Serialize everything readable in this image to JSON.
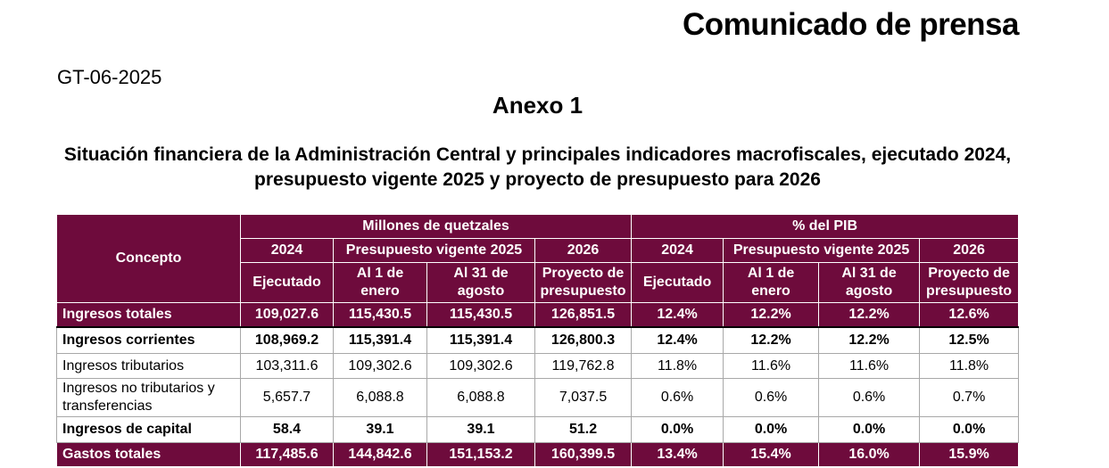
{
  "document": {
    "title": "Comunicado de prensa",
    "code": "GT-06-2025",
    "annex": "Anexo 1",
    "subtitle_line1": "Situación financiera de la Administración Central y principales indicadores macrofiscales, ejecutado 2024,",
    "subtitle_line2": "presupuesto vigente 2025 y proyecto de presupuesto para 2026"
  },
  "table": {
    "concept_header": "Concepto",
    "group_millions": "Millones de quetzales",
    "group_pib": "% del PIB",
    "years": {
      "y2024": "2024",
      "y2025": "Presupuesto vigente 2025",
      "y2026": "2026"
    },
    "subheaders": {
      "executed": "Ejecutado",
      "jan1": "Al 1 de enero",
      "aug31": "Al 31 de agosto",
      "project": "Proyecto de presupuesto"
    },
    "rows": [
      {
        "label": "Ingresos totales",
        "values": [
          "109,027.6",
          "115,430.5",
          "115,430.5",
          "126,851.5",
          "12.4%",
          "12.2%",
          "12.2%",
          "12.6%"
        ]
      },
      {
        "label": "Ingresos corrientes",
        "values": [
          "108,969.2",
          "115,391.4",
          "115,391.4",
          "126,800.3",
          "12.4%",
          "12.2%",
          "12.2%",
          "12.5%"
        ]
      },
      {
        "label": "Ingresos tributarios",
        "values": [
          "103,311.6",
          "109,302.6",
          "109,302.6",
          "119,762.8",
          "11.8%",
          "11.6%",
          "11.6%",
          "11.8%"
        ]
      },
      {
        "label": "Ingresos no tributarios y transferencias",
        "values": [
          "5,657.7",
          "6,088.8",
          "6,088.8",
          "7,037.5",
          "0.6%",
          "0.6%",
          "0.6%",
          "0.7%"
        ]
      },
      {
        "label": "Ingresos de capital",
        "values": [
          "58.4",
          "39.1",
          "39.1",
          "51.2",
          "0.0%",
          "0.0%",
          "0.0%",
          "0.0%"
        ]
      },
      {
        "label": "Gastos totales",
        "values": [
          "117,485.6",
          "144,842.6",
          "151,153.2",
          "160,399.5",
          "13.4%",
          "15.4%",
          "16.0%",
          "15.9%"
        ]
      }
    ]
  }
}
